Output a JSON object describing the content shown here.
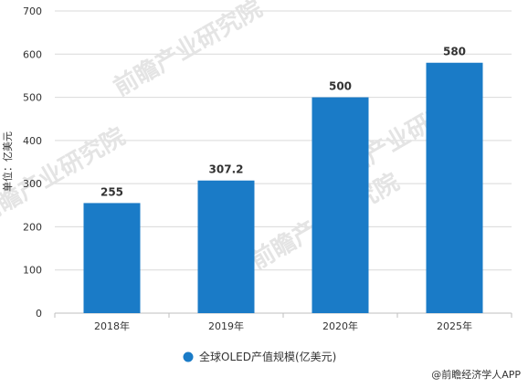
{
  "chart_data": {
    "type": "bar",
    "categories": [
      "2018年",
      "2019年",
      "2020年",
      "2025年"
    ],
    "series": [
      {
        "name": "全球OLED产值规模(亿美元)",
        "values": [
          255,
          307.2,
          500,
          580
        ]
      }
    ],
    "data_labels": [
      "255",
      "307.2",
      "500",
      "580"
    ],
    "ylabel": "单位：亿美元",
    "ylim": [
      0,
      700
    ],
    "yticks": [
      0,
      100,
      200,
      300,
      400,
      500,
      600,
      700
    ],
    "grid": true,
    "legend_position": "bottom",
    "colors": {
      "bar": "#1a7bc7",
      "grid": "#d9d9d9",
      "axis": "#bfbfbf",
      "text": "#333333"
    }
  },
  "watermark": "前瞻产业研究院",
  "credit": "@前瞻经济学人APP"
}
